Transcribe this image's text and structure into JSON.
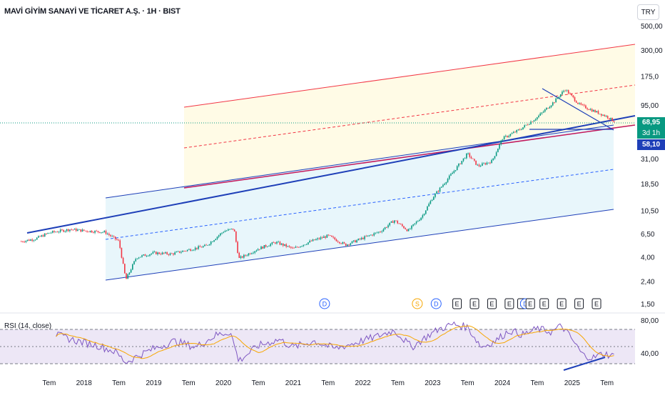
{
  "header": {
    "symbol_title": "MAVİ GİYİM SANAYİ VE TİCARET A.Ş. · 1H · BIST",
    "currency_button": "TRY"
  },
  "colors": {
    "up": "#089981",
    "down": "#f23645",
    "channel_red": "#f23645",
    "channel_blue": "#2962ff",
    "rsi_line": "#7e57c2",
    "rsi_ma": "#f7a600",
    "fill_yellow": "#fffbe6",
    "fill_blue": "#e8f6fb"
  },
  "price_tags": {
    "last_price": "68,95",
    "countdown": "3d 1h",
    "blue_level": "58,10"
  },
  "rsi": {
    "label": "RSI (14, close)",
    "ticks": [
      "80,00",
      "40,00"
    ]
  },
  "chart_data": {
    "type": "candlestick",
    "title": "MAVİ GİYİM SANAYİ VE TİCARET A.Ş. · 1H · BIST",
    "y_scale": "log",
    "y_ticks": [
      "500,00",
      "300,00",
      "175,0",
      "95,00",
      "68,95",
      "31,00",
      "18,50",
      "10,50",
      "6,50",
      "4,00",
      "2,40",
      "1,50"
    ],
    "x_ticks": [
      "Tem",
      "2018",
      "Tem",
      "2019",
      "Tem",
      "2020",
      "Tem",
      "2021",
      "Tem",
      "2022",
      "Tem",
      "2023",
      "Tem",
      "2024",
      "Tem",
      "2025",
      "Tem"
    ],
    "price_path": [
      [
        2017.1,
        5.6
      ],
      [
        2017.3,
        5.9
      ],
      [
        2017.5,
        6.7
      ],
      [
        2017.8,
        7.2
      ],
      [
        2018.0,
        7.0
      ],
      [
        2018.3,
        6.8
      ],
      [
        2018.5,
        5.6
      ],
      [
        2018.6,
        2.5
      ],
      [
        2018.75,
        4.0
      ],
      [
        2019.0,
        4.4
      ],
      [
        2019.25,
        4.3
      ],
      [
        2019.5,
        4.7
      ],
      [
        2019.75,
        5.1
      ],
      [
        2020.0,
        6.9
      ],
      [
        2020.15,
        7.3
      ],
      [
        2020.22,
        3.9
      ],
      [
        2020.5,
        4.8
      ],
      [
        2020.75,
        5.5
      ],
      [
        2021.0,
        4.8
      ],
      [
        2021.25,
        5.6
      ],
      [
        2021.5,
        6.3
      ],
      [
        2021.75,
        5.2
      ],
      [
        2022.0,
        6.0
      ],
      [
        2022.25,
        6.9
      ],
      [
        2022.45,
        8.7
      ],
      [
        2022.65,
        7.0
      ],
      [
        2022.85,
        9.5
      ],
      [
        2023.0,
        14.0
      ],
      [
        2023.25,
        22.0
      ],
      [
        2023.5,
        35.0
      ],
      [
        2023.65,
        27.0
      ],
      [
        2023.85,
        30.0
      ],
      [
        2024.0,
        48.0
      ],
      [
        2024.25,
        58.0
      ],
      [
        2024.5,
        75.0
      ],
      [
        2024.75,
        105.0
      ],
      [
        2024.9,
        135.0
      ],
      [
        2025.1,
        98.0
      ],
      [
        2025.3,
        86.0
      ],
      [
        2025.5,
        76.0
      ],
      [
        2025.6,
        68.95
      ]
    ],
    "rsi_path": [
      [
        2017.6,
        66
      ],
      [
        2017.9,
        58
      ],
      [
        2018.2,
        52
      ],
      [
        2018.45,
        44
      ],
      [
        2018.6,
        30
      ],
      [
        2018.8,
        40
      ],
      [
        2019.0,
        48
      ],
      [
        2019.3,
        58
      ],
      [
        2019.6,
        50
      ],
      [
        2019.9,
        66
      ],
      [
        2020.1,
        70
      ],
      [
        2020.22,
        32
      ],
      [
        2020.5,
        52
      ],
      [
        2020.8,
        60
      ],
      [
        2021.0,
        50
      ],
      [
        2021.3,
        58
      ],
      [
        2021.6,
        48
      ],
      [
        2021.9,
        56
      ],
      [
        2022.2,
        64
      ],
      [
        2022.45,
        72
      ],
      [
        2022.7,
        50
      ],
      [
        2022.95,
        66
      ],
      [
        2023.1,
        74
      ],
      [
        2023.3,
        80
      ],
      [
        2023.5,
        76
      ],
      [
        2023.7,
        50
      ],
      [
        2023.9,
        58
      ],
      [
        2024.1,
        72
      ],
      [
        2024.3,
        66
      ],
      [
        2024.5,
        74
      ],
      [
        2024.7,
        70
      ],
      [
        2024.85,
        78
      ],
      [
        2025.0,
        60
      ],
      [
        2025.15,
        40
      ],
      [
        2025.3,
        36
      ],
      [
        2025.45,
        42
      ],
      [
        2025.6,
        38
      ]
    ],
    "rsi_ylim": [
      20,
      90
    ],
    "rsi_levels": [
      70,
      50,
      30
    ],
    "events": [
      {
        "x": 2021.45,
        "label": "D"
      },
      {
        "x": 2022.78,
        "label": "S"
      },
      {
        "x": 2023.05,
        "label": "D"
      },
      {
        "x": 2023.35,
        "label": "E"
      },
      {
        "x": 2023.6,
        "label": "E"
      },
      {
        "x": 2023.85,
        "label": "E"
      },
      {
        "x": 2024.1,
        "label": "E"
      },
      {
        "x": 2024.28,
        "label": "E"
      },
      {
        "x": 2024.33,
        "label": "D"
      },
      {
        "x": 2024.4,
        "label": "E"
      },
      {
        "x": 2024.6,
        "label": "E"
      },
      {
        "x": 2024.85,
        "label": "E"
      },
      {
        "x": 2025.1,
        "label": "E"
      },
      {
        "x": 2025.35,
        "label": "E"
      }
    ]
  }
}
